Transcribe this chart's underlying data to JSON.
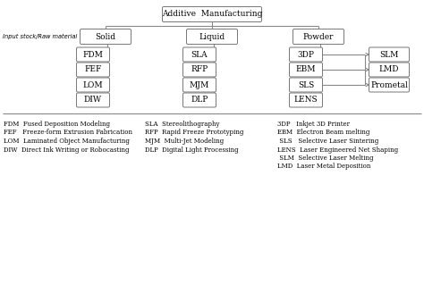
{
  "title": "Additive  Manufacturing",
  "input_label": "Input stock/Raw material",
  "categories": [
    "Solid",
    "Liquid",
    "Powder"
  ],
  "solid_children": [
    "FDM",
    "FEF",
    "LOM",
    "DIW"
  ],
  "liquid_children": [
    "SLA",
    "RFP",
    "MJM",
    "DLP"
  ],
  "powder_children": [
    "3DP",
    "EBM",
    "SLS",
    "LENS"
  ],
  "powder_extra": [
    "SLM",
    "LMD",
    "Prometal"
  ],
  "bg_color": "#ffffff",
  "box_edge_color": "#777777",
  "line_color": "#888888",
  "text_color": "#000000",
  "legend_col1": [
    "FDM  Fused Deposition Modeling",
    "FEF   Freeze-form Extrusion Fabrication",
    "LOM  Laminated Object Manufacturing",
    "DIW  Direct Ink Writing or Robocasting"
  ],
  "legend_col2": [
    "SLA  Stereolithography",
    "RFP  Rapid Freeze Prototyping",
    "MJM  Multi-Jet Modeling",
    "DLP  Digital Light Processing"
  ],
  "legend_col3": [
    "3DP   Inkjet 3D Printer",
    "EBM  Electron Beam melting",
    " SLS   Selective Laser Sintering",
    "LENS  Laser Engineered Net Shaping",
    " SLM  Selective Laser Melting",
    "LMD  Laser Metal Deposition"
  ]
}
